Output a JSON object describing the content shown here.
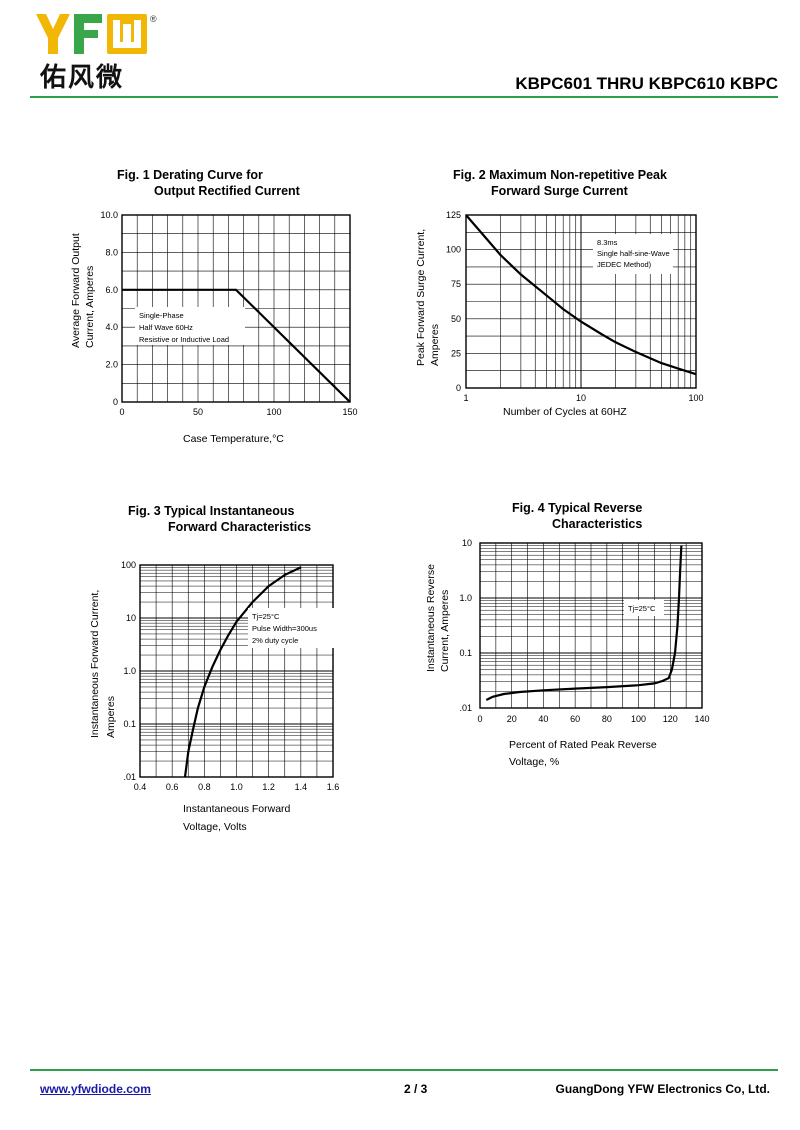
{
  "header": {
    "logo_text": "YFW",
    "logo_chinese": "佑风微",
    "registered_mark": "®",
    "document_title": "KBPC601 THRU KBPC610  KBPC"
  },
  "footer": {
    "website": "www.yfwdiode.com",
    "page": "2 / 3",
    "company": "GuangDong YFW Electronics Co, Ltd."
  },
  "colors": {
    "accent_rule": "#2e9f4a",
    "link": "#1a1aa6",
    "logo_yellow": "#f2b705",
    "logo_green": "#3aa64a"
  },
  "chart_data": [
    {
      "type": "line",
      "title_line1": "Fig. 1 Derating Curve for",
      "title_line2": "Output Rectified Current",
      "xlabel": "Case Temperature,°C",
      "ylabel_line1": "Average Forward Output",
      "ylabel_line2": "Current, Amperes",
      "xlim": [
        0,
        150
      ],
      "ylim": [
        0,
        10
      ],
      "x_ticks": [
        "0",
        "50",
        "100",
        "150"
      ],
      "y_ticks": [
        "0",
        "2.0",
        "4.0",
        "6.0",
        "8.0",
        "10.0"
      ],
      "grid": true,
      "annotations": [
        "Single-Phase",
        "Half Wave 60Hz",
        "Resistive or Inductive Load"
      ],
      "series": [
        {
          "x": [
            0,
            75,
            150
          ],
          "y": [
            6.0,
            6.0,
            0
          ]
        }
      ]
    },
    {
      "type": "line",
      "title_line1": "Fig. 2 Maximum Non-repetitive Peak",
      "title_line2": "Forward Surge Current",
      "xlabel": "Number of Cycles at 60HZ",
      "ylabel_line1": "Peak Forward Surge Current,",
      "ylabel_line2": "Amperes",
      "x_scale": "log",
      "xlim": [
        1,
        100
      ],
      "ylim": [
        0,
        125
      ],
      "x_ticks": [
        "1",
        "10",
        "100"
      ],
      "y_ticks": [
        "0",
        "25",
        "50",
        "75",
        "100",
        "125"
      ],
      "grid": true,
      "annotations": [
        "8.3ms",
        "Single half-sine-Wave",
        "JEDEC Method)"
      ],
      "series": [
        {
          "x": [
            1,
            1.5,
            2,
            3,
            5,
            7,
            10,
            15,
            20,
            30,
            50,
            70,
            100
          ],
          "y": [
            125,
            108,
            96,
            82,
            67,
            57,
            48,
            39,
            33,
            26,
            18,
            14,
            10
          ]
        }
      ]
    },
    {
      "type": "line",
      "title_line1": "Fig. 3 Typical Instantaneous",
      "title_line2": "Forward Characteristics",
      "xlabel_line1": "Instantaneous Forward",
      "xlabel_line2": "Voltage, Volts",
      "ylabel_line1": "Instantaneous Forward Current,",
      "ylabel_line2": "Amperes",
      "y_scale": "log",
      "xlim": [
        0.4,
        1.6
      ],
      "ylim": [
        0.01,
        100
      ],
      "x_ticks": [
        "0.4",
        "0.6",
        "0.8",
        "1.0",
        "1.2",
        "1.4",
        "1.6"
      ],
      "y_ticks": [
        ".01",
        "0.1",
        "1.0",
        "10",
        "100"
      ],
      "grid": true,
      "annotations": [
        "Tj=25°C",
        "Pulse Width=300us",
        "2% duty cycle"
      ],
      "series": [
        {
          "x": [
            0.68,
            0.7,
            0.73,
            0.76,
            0.8,
            0.85,
            0.9,
            0.95,
            1.0,
            1.1,
            1.2,
            1.3,
            1.4
          ],
          "y": [
            0.01,
            0.03,
            0.08,
            0.2,
            0.5,
            1.2,
            2.5,
            4.8,
            8.5,
            20,
            40,
            65,
            90
          ]
        }
      ]
    },
    {
      "type": "line",
      "title_line1": "Fig. 4 Typical Reverse",
      "title_line2": "Characteristics",
      "xlabel_line1": "Percent of Rated Peak Reverse",
      "xlabel_line2": "Voltage, %",
      "ylabel_line1": "Instantaneous Reverse",
      "ylabel_line2": "Current, Amperes",
      "y_scale": "log",
      "xlim": [
        0,
        140
      ],
      "ylim": [
        0.01,
        10
      ],
      "x_ticks": [
        "0",
        "20",
        "40",
        "60",
        "80",
        "100",
        "120",
        "140"
      ],
      "y_ticks": [
        ".01",
        "0.1",
        "1.0",
        "10"
      ],
      "grid": true,
      "annotations": [
        "Tj=25°C"
      ],
      "series": [
        {
          "x": [
            4,
            8,
            15,
            25,
            40,
            60,
            80,
            100,
            110,
            115,
            119,
            121,
            123,
            124.5,
            125.5,
            126.2,
            126.7,
            127
          ],
          "y": [
            0.014,
            0.016,
            0.018,
            0.0195,
            0.021,
            0.0225,
            0.024,
            0.026,
            0.028,
            0.031,
            0.035,
            0.05,
            0.1,
            0.3,
            1.0,
            3.0,
            6.0,
            9.0
          ]
        }
      ]
    }
  ]
}
